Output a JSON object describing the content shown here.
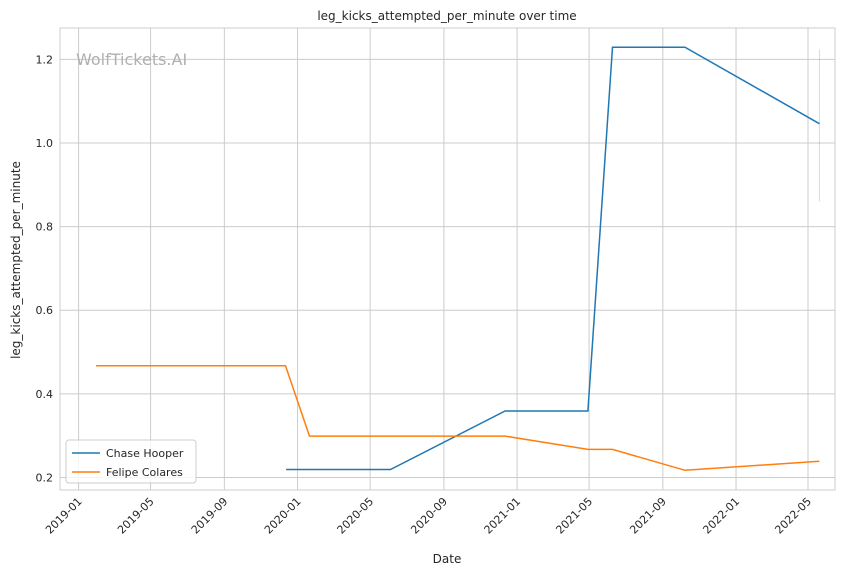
{
  "chart_data": {
    "type": "line",
    "title": "leg_kicks_attempted_per_minute over time",
    "xlabel": "Date",
    "ylabel": "leg_kicks_attempted_per_minute",
    "watermark": "WolfTickets.AI",
    "xlim": [
      "2018-12-01",
      "2022-06-15"
    ],
    "ylim": [
      0.17,
      1.275
    ],
    "x_ticks": [
      "2019-01",
      "2019-05",
      "2019-09",
      "2020-01",
      "2020-05",
      "2020-09",
      "2021-01",
      "2021-05",
      "2021-09",
      "2022-01",
      "2022-05"
    ],
    "y_ticks": [
      0.2,
      0.4,
      0.6,
      0.8,
      1.0,
      1.2
    ],
    "grid": true,
    "legend_placement": "lower-left",
    "series": [
      {
        "name": "Chase Hooper",
        "color": "#1f77b4",
        "x": [
          "2019-12-13",
          "2020-06-04",
          "2020-12-12",
          "2021-04-29",
          "2021-06-09",
          "2021-10-08",
          "2022-05-20"
        ],
        "y": [
          0.219,
          0.219,
          0.359,
          0.359,
          1.229,
          1.229,
          1.046
        ],
        "band": {
          "x": "2022-05-20",
          "y": [
            0.86,
            1.224
          ]
        }
      },
      {
        "name": "Felipe Colares",
        "color": "#ff7f0e",
        "x": [
          "2019-01-30",
          "2019-12-12",
          "2020-01-21",
          "2020-12-12",
          "2021-04-29",
          "2021-06-09",
          "2021-10-08",
          "2022-05-20"
        ],
        "y": [
          0.467,
          0.467,
          0.299,
          0.299,
          0.267,
          0.267,
          0.217,
          0.239
        ]
      }
    ]
  }
}
